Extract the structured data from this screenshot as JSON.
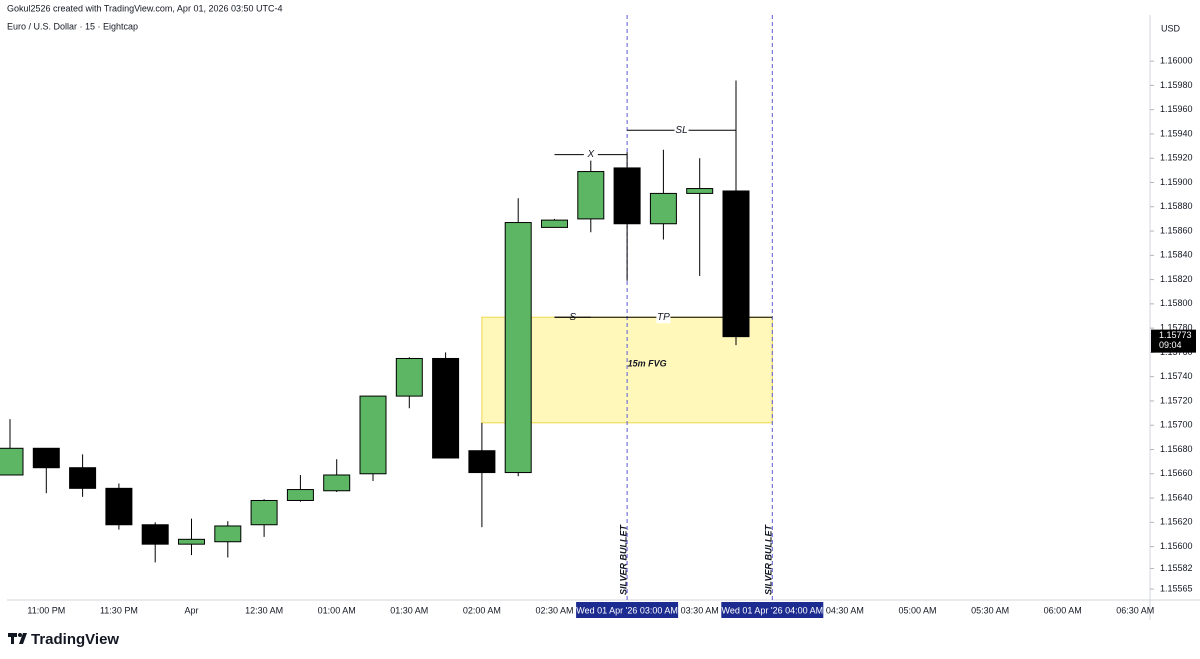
{
  "header": {
    "credit": "Gokul2526 created with TradingView.com, Apr 01, 2026 03:50 UTC-4",
    "symbol": "Euro / U.S. Dollar · 15 · Eightcap",
    "currency": "USD",
    "logo": "TradingView"
  },
  "chart_data": {
    "type": "candlestick",
    "categories": [
      null,
      "11:00 PM",
      null,
      "11:30 PM",
      null,
      "Apr",
      null,
      "12:30 AM",
      null,
      "01:00 AM",
      null,
      "01:30 AM",
      null,
      "02:00 AM",
      null,
      "02:30 AM",
      null,
      "Wed 01 Apr '26  03:00 AM",
      null,
      "03:30 AM",
      null,
      "Wed 01 Apr '26  04:00 AM",
      null,
      "04:30 AM",
      null,
      "05:00 AM",
      null,
      "05:30 AM",
      null,
      "06:00 AM",
      null,
      "06:30 AM"
    ],
    "highlighted_categories": [
      17,
      21
    ],
    "open": [
      1.15659,
      1.15681,
      1.15665,
      1.15648,
      1.15618,
      1.15602,
      1.15604,
      1.15618,
      1.15638,
      1.15646,
      1.1566,
      1.15724,
      1.15755,
      1.15679,
      1.15661,
      1.15863,
      1.1587,
      1.15912,
      1.15866,
      1.15891,
      1.15893,
      null,
      null,
      null,
      null,
      null,
      null,
      null,
      null,
      null,
      null,
      null
    ],
    "high": [
      1.15705,
      1.15681,
      1.15676,
      1.15652,
      1.1562,
      1.15623,
      1.15621,
      1.15639,
      1.15659,
      1.15672,
      1.15724,
      1.15756,
      1.1576,
      1.15702,
      1.15887,
      1.1587,
      1.15918,
      1.15925,
      1.15927,
      1.1592,
      1.15984,
      null,
      null,
      null,
      null,
      null,
      null,
      null,
      null,
      null,
      null,
      null
    ],
    "low": [
      1.15659,
      1.15644,
      1.15641,
      1.15614,
      1.15587,
      1.15593,
      1.15591,
      1.15608,
      1.15637,
      1.15645,
      1.15654,
      1.15714,
      1.15673,
      1.15616,
      1.15658,
      1.15863,
      1.15859,
      1.15819,
      1.15853,
      1.15823,
      1.15766,
      null,
      null,
      null,
      null,
      null,
      null,
      null,
      null,
      null,
      null,
      null
    ],
    "close": [
      1.15681,
      1.15665,
      1.15648,
      1.15618,
      1.15602,
      1.15606,
      1.15617,
      1.15638,
      1.15647,
      1.15659,
      1.15724,
      1.15755,
      1.15673,
      1.15661,
      1.15867,
      1.15869,
      1.15909,
      1.15866,
      1.15891,
      1.15895,
      1.15773,
      null,
      null,
      null,
      null,
      null,
      null,
      null,
      null,
      null,
      null,
      null
    ],
    "up_color": "#5cb663",
    "down_color": "#000000",
    "ylim": [
      1.15556,
      1.16038
    ],
    "yticks": [
      {
        "value": 1.16,
        "label": "1.16000"
      },
      {
        "value": 1.1598,
        "label": "1.15980"
      },
      {
        "value": 1.1596,
        "label": "1.15960"
      },
      {
        "value": 1.1594,
        "label": "1.15940"
      },
      {
        "value": 1.1592,
        "label": "1.15920"
      },
      {
        "value": 1.159,
        "label": "1.15900"
      },
      {
        "value": 1.1588,
        "label": "1.15880"
      },
      {
        "value": 1.1586,
        "label": "1.15860"
      },
      {
        "value": 1.1584,
        "label": "1.15840"
      },
      {
        "value": 1.1582,
        "label": "1.15820"
      },
      {
        "value": 1.158,
        "label": "1.15800"
      },
      {
        "value": 1.1578,
        "label": "1.15780"
      },
      {
        "value": 1.1576,
        "label": "1.15760"
      },
      {
        "value": 1.1574,
        "label": "1.15740"
      },
      {
        "value": 1.1572,
        "label": "1.15720"
      },
      {
        "value": 1.157,
        "label": "1.15700"
      },
      {
        "value": 1.1568,
        "label": "1.15680"
      },
      {
        "value": 1.1566,
        "label": "1.15660"
      },
      {
        "value": 1.1564,
        "label": "1.15640"
      },
      {
        "value": 1.1562,
        "label": "1.15620"
      },
      {
        "value": 1.156,
        "label": "1.15600"
      },
      1.15582,
      1.15565
    ],
    "last_price": {
      "value": 1.15773,
      "countdown": "09:04"
    },
    "zones": [
      {
        "label": "15m FVG",
        "from": 13,
        "to": 21,
        "top": 1.15789,
        "bottom": 1.15702,
        "color": "#fff59d"
      }
    ],
    "lines": [
      {
        "label": "TP",
        "color": "#4caf50",
        "from": 15,
        "to": 21,
        "price": 1.15789
      },
      {
        "label": "SL",
        "color": "#f23645",
        "from": 17,
        "to": 20,
        "price": 1.15943
      },
      {
        "label": "X",
        "color": "#f23645",
        "from": 15,
        "to": 17,
        "price": 1.15923
      },
      {
        "label": "S",
        "color": "#000000",
        "from": 15,
        "to": 16,
        "price": 1.15789
      }
    ],
    "vlines": [
      {
        "index": 17,
        "label": "SILVER BULLET"
      },
      {
        "index": 21,
        "label": "SILVER BULLET"
      }
    ],
    "vline_color": "#5b5bd6"
  }
}
